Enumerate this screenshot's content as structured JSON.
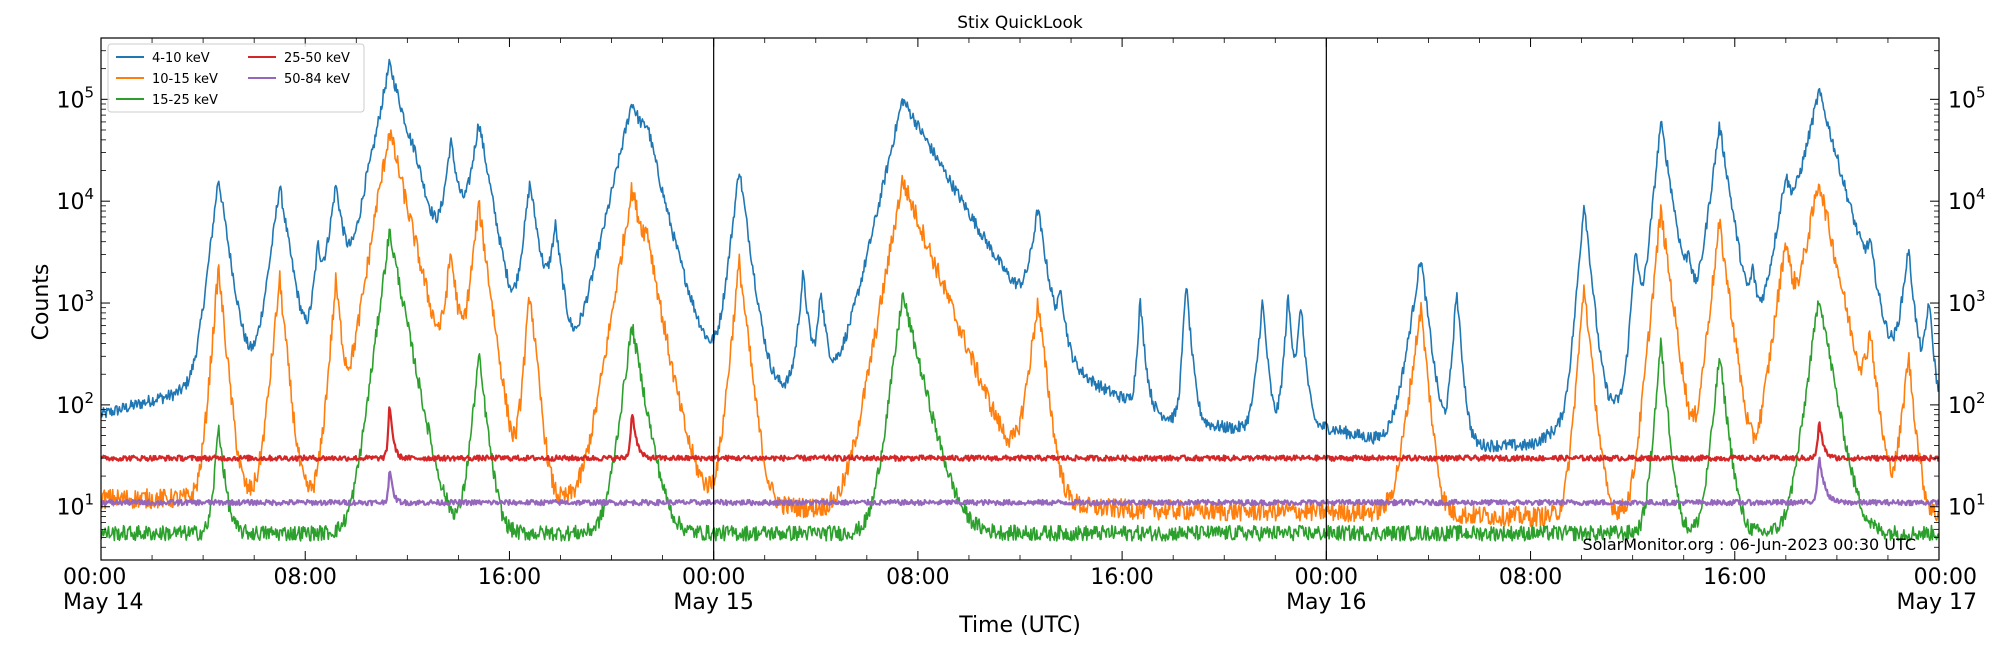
{
  "chart_data": {
    "type": "line",
    "title": "Stix QuickLook",
    "xlabel": "Time (UTC)",
    "ylabel": "Counts",
    "yscale": "log",
    "ylim": [
      3,
      400000
    ],
    "xlim_hours": [
      0,
      72
    ],
    "x_ticks": [
      {
        "hour": 0,
        "time": "00:00",
        "date": "May 14"
      },
      {
        "hour": 8,
        "time": "08:00",
        "date": ""
      },
      {
        "hour": 16,
        "time": "16:00",
        "date": ""
      },
      {
        "hour": 24,
        "time": "00:00",
        "date": "May 15"
      },
      {
        "hour": 32,
        "time": "08:00",
        "date": ""
      },
      {
        "hour": 40,
        "time": "16:00",
        "date": ""
      },
      {
        "hour": 48,
        "time": "00:00",
        "date": "May 16"
      },
      {
        "hour": 56,
        "time": "08:00",
        "date": ""
      },
      {
        "hour": 64,
        "time": "16:00",
        "date": ""
      },
      {
        "hour": 72,
        "time": "00:00",
        "date": "May 17"
      }
    ],
    "y_ticks": [
      {
        "exp": 1,
        "base": "10",
        "sup": "1"
      },
      {
        "exp": 2,
        "base": "10",
        "sup": "2"
      },
      {
        "exp": 3,
        "base": "10",
        "sup": "3"
      },
      {
        "exp": 4,
        "base": "10",
        "sup": "4"
      },
      {
        "exp": 5,
        "base": "10",
        "sup": "5"
      }
    ],
    "day_lines_hours": [
      24,
      48
    ],
    "legend_position": "top-left",
    "annotation": "SolarMonitor.org : 06-Jun-2023 00:30 UTC",
    "series": [
      {
        "name": "4-10 keV",
        "color": "#1f77b4",
        "baseline": [
          [
            0,
            80
          ],
          [
            4,
            150
          ],
          [
            8,
            200
          ],
          [
            10,
            300
          ],
          [
            12,
            900
          ],
          [
            14,
            250
          ],
          [
            16,
            200
          ],
          [
            18,
            150
          ],
          [
            20,
            120
          ],
          [
            22,
            130
          ],
          [
            24,
            170
          ],
          [
            26,
            140
          ],
          [
            28,
            150
          ],
          [
            30,
            140
          ],
          [
            32,
            130
          ],
          [
            34,
            300
          ],
          [
            36,
            220
          ],
          [
            38,
            120
          ],
          [
            40,
            100
          ],
          [
            42,
            70
          ],
          [
            44,
            60
          ],
          [
            46,
            55
          ],
          [
            48,
            60
          ],
          [
            50,
            45
          ],
          [
            52,
            45
          ],
          [
            54,
            40
          ],
          [
            56,
            40
          ],
          [
            58,
            80
          ],
          [
            60,
            110
          ],
          [
            62,
            200
          ],
          [
            64,
            250
          ],
          [
            66,
            180
          ],
          [
            68,
            90
          ],
          [
            70,
            70
          ],
          [
            72,
            70
          ]
        ],
        "flares": [
          [
            2.3,
            3.5,
            110,
            4.5
          ],
          [
            4.6,
            17000,
            35,
            15
          ],
          [
            7,
            14000,
            40,
            16
          ],
          [
            8.5,
            3000,
            25,
            10
          ],
          [
            9.2,
            14000,
            40,
            14
          ],
          [
            10.4,
            2500,
            25,
            8
          ],
          [
            11.3,
            220000,
            60,
            28
          ],
          [
            12.3,
            6000,
            35,
            12
          ],
          [
            13.7,
            37000,
            35,
            15
          ],
          [
            14.8,
            60000,
            45,
            18
          ],
          [
            16.8,
            15000,
            35,
            15
          ],
          [
            17.8,
            5500,
            35,
            12
          ],
          [
            20.8,
            90000,
            70,
            30
          ],
          [
            21.4,
            30000,
            60,
            18
          ],
          [
            25,
            21000,
            35,
            14
          ],
          [
            27.5,
            1800,
            25,
            10
          ],
          [
            28.2,
            1200,
            20,
            9
          ],
          [
            31.4,
            100000,
            70,
            60
          ],
          [
            36.7,
            8000,
            40,
            14
          ],
          [
            37.6,
            1000,
            20,
            8
          ],
          [
            40.7,
            1000,
            15,
            8
          ],
          [
            42.5,
            1600,
            15,
            8
          ],
          [
            45.5,
            1000,
            25,
            8
          ],
          [
            46.5,
            1100,
            20,
            8
          ],
          [
            47,
            900,
            20,
            8
          ],
          [
            51.7,
            2800,
            45,
            12
          ],
          [
            53.1,
            1300,
            20,
            8
          ],
          [
            58.1,
            10000,
            25,
            10
          ],
          [
            60.1,
            3300,
            20,
            10
          ],
          [
            61.1,
            60000,
            30,
            16
          ],
          [
            62.2,
            2100,
            25,
            8
          ],
          [
            63.4,
            55000,
            40,
            16
          ],
          [
            64.7,
            1500,
            20,
            8
          ],
          [
            66,
            14000,
            45,
            14
          ],
          [
            67.3,
            120000,
            70,
            28
          ],
          [
            69.3,
            2500,
            35,
            10
          ],
          [
            70.8,
            3300,
            35,
            10
          ],
          [
            71.6,
            1000,
            25,
            8
          ]
        ]
      },
      {
        "name": "10-15 keV",
        "color": "#ff7f0e",
        "baseline": [
          [
            0,
            12
          ],
          [
            10,
            12
          ],
          [
            12,
            15
          ],
          [
            14,
            11
          ],
          [
            24,
            11
          ],
          [
            30,
            9
          ],
          [
            36,
            10
          ],
          [
            44,
            9
          ],
          [
            48,
            9
          ],
          [
            56,
            8
          ],
          [
            64,
            9
          ],
          [
            68,
            9
          ],
          [
            72,
            8
          ]
        ],
        "flares": [
          [
            4.6,
            2200,
            25,
            10
          ],
          [
            7,
            1700,
            30,
            10
          ],
          [
            9.2,
            1600,
            25,
            10
          ],
          [
            10.8,
            1200,
            20,
            8
          ],
          [
            11.3,
            50000,
            50,
            24
          ],
          [
            13.7,
            3000,
            30,
            12
          ],
          [
            14.8,
            9000,
            35,
            14
          ],
          [
            16.8,
            1300,
            25,
            10
          ],
          [
            20.8,
            13000,
            50,
            22
          ],
          [
            21.4,
            2700,
            40,
            14
          ],
          [
            25,
            2500,
            30,
            12
          ],
          [
            31.4,
            16000,
            55,
            40
          ],
          [
            36.7,
            1000,
            40,
            12
          ],
          [
            51.7,
            900,
            40,
            10
          ],
          [
            58.1,
            1500,
            25,
            10
          ],
          [
            61.1,
            8000,
            30,
            14
          ],
          [
            63.4,
            6000,
            35,
            14
          ],
          [
            66,
            4000,
            40,
            12
          ],
          [
            67.3,
            16000,
            60,
            22
          ],
          [
            69.3,
            500,
            30,
            10
          ],
          [
            70.8,
            300,
            30,
            10
          ]
        ]
      },
      {
        "name": "15-25 keV",
        "color": "#2ca02c",
        "baseline": [
          [
            0,
            5.5
          ],
          [
            24,
            5.5
          ],
          [
            48,
            5.5
          ],
          [
            72,
            5.5
          ]
        ],
        "flares": [
          [
            4.6,
            60,
            20,
            10
          ],
          [
            11.3,
            5000,
            40,
            20
          ],
          [
            14.8,
            300,
            30,
            12
          ],
          [
            20.8,
            600,
            40,
            18
          ],
          [
            31.4,
            1200,
            40,
            25
          ],
          [
            61.1,
            400,
            25,
            10
          ],
          [
            63.4,
            300,
            30,
            12
          ],
          [
            67.3,
            1200,
            40,
            18
          ]
        ]
      },
      {
        "name": "25-50 keV",
        "color": "#d62728",
        "baseline": [
          [
            0,
            30
          ],
          [
            24,
            30
          ],
          [
            48,
            30
          ],
          [
            72,
            30
          ]
        ],
        "flares": [
          [
            11.3,
            80,
            8,
            6
          ],
          [
            20.8,
            60,
            10,
            8
          ],
          [
            67.3,
            40,
            10,
            8
          ]
        ]
      },
      {
        "name": "50-84 keV",
        "color": "#9467bd",
        "baseline": [
          [
            0,
            11
          ],
          [
            24,
            11
          ],
          [
            48,
            11
          ],
          [
            72,
            11
          ]
        ],
        "flares": [
          [
            11.3,
            14,
            8,
            6
          ],
          [
            67.3,
            20,
            12,
            10
          ]
        ]
      }
    ]
  }
}
